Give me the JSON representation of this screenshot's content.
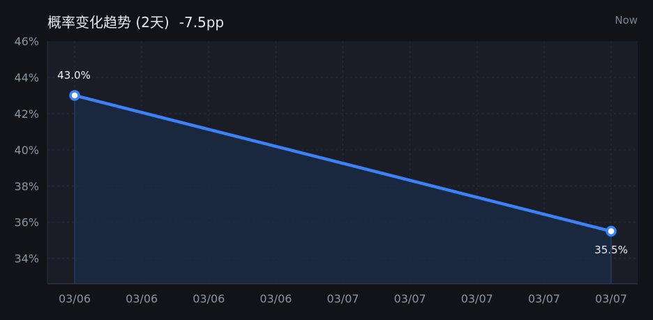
{
  "header": {
    "title": "概率变化趋势 (2天)",
    "change": "-7.5pp",
    "time_label": "Now"
  },
  "colors": {
    "background": "#111318",
    "plot_background": "#1a1d26",
    "line": "#3b82f6",
    "area_fill": "#1b2a44",
    "grid": "#252a36"
  },
  "chart_data": {
    "type": "area",
    "title": "概率变化趋势 (2天)",
    "xlabel": "",
    "ylabel": "",
    "x_tick_labels": [
      "03/06",
      "03/06",
      "03/06",
      "03/06",
      "03/07",
      "03/07",
      "03/07",
      "03/07",
      "03/07"
    ],
    "y_tick_labels": [
      "46%",
      "44%",
      "42%",
      "40%",
      "38%",
      "36%",
      "34%"
    ],
    "y_ticks": [
      46,
      44,
      42,
      40,
      38,
      36,
      34
    ],
    "ylim": [
      32.6,
      46
    ],
    "grid": true,
    "legend": "none",
    "series": [
      {
        "x_index": [
          0,
          8
        ],
        "values": [
          43.0,
          35.5
        ],
        "data_labels": [
          "43.0%",
          "35.5%"
        ]
      }
    ]
  }
}
